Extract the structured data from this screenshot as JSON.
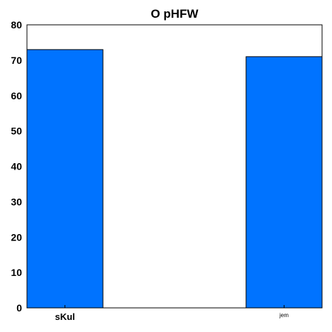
{
  "chart_data": {
    "type": "bar",
    "title": "O pHFW",
    "xlabel": "",
    "ylabel": "",
    "categories": [
      "sKul",
      "jem"
    ],
    "values": [
      73,
      71
    ],
    "ylim": [
      0,
      80
    ],
    "yticks": [
      "0",
      "10",
      "20",
      "30",
      "40",
      "50",
      "60",
      "70",
      "80"
    ],
    "bar_color": "#0073ff",
    "grid": false,
    "legend": "none"
  }
}
